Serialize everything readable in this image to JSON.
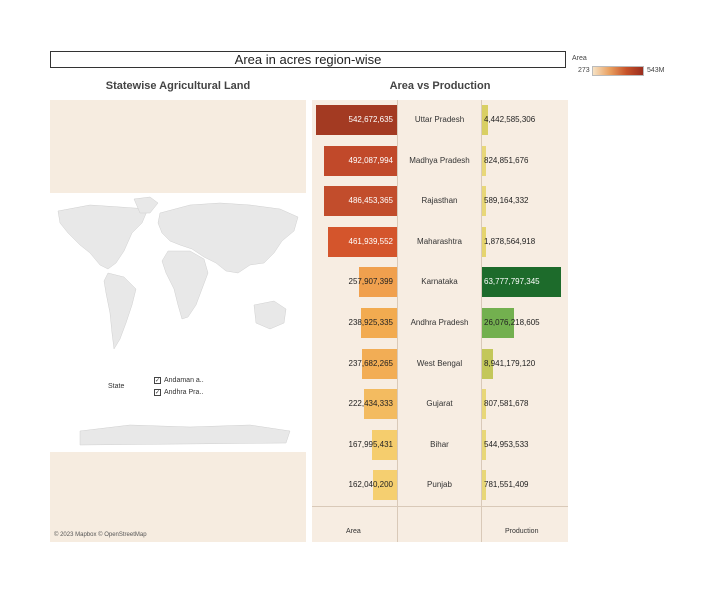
{
  "header": {
    "title": "Area in acres region-wise"
  },
  "legend": {
    "title": "Area",
    "min": "273",
    "max": "543M"
  },
  "map": {
    "title": "Statewise Agricultural Land",
    "filter_label": "State",
    "states": [
      {
        "label": "Andaman a.."
      },
      {
        "label": "Andhra Pra.."
      }
    ],
    "credit": "© 2023 Mapbox © OpenStreetMap",
    "colors": {
      "land": "#e8e8e8",
      "panel": "#f6ece0"
    }
  },
  "chart_data": {
    "type": "bar",
    "title": "Area vs Production",
    "categories": [
      "Uttar Pradesh",
      "Madhya Pradesh",
      "Rajasthan",
      "Maharashtra",
      "Karnataka",
      "Andhra Pradesh",
      "West Bengal",
      "Gujarat",
      "Bihar",
      "Punjab"
    ],
    "series": [
      {
        "name": "Area",
        "values": [
          542672635,
          492087994,
          486453365,
          461939552,
          257907399,
          238925335,
          237682265,
          222434333,
          167995431,
          162040200
        ],
        "labels": [
          "542,672,635",
          "492,087,994",
          "486,453,365",
          "461,939,552",
          "257,907,399",
          "238,925,335",
          "237,682,265",
          "222,434,333",
          "167,995,431",
          "162,040,200"
        ],
        "colors": [
          "#a33a22",
          "#c1492a",
          "#c24d2c",
          "#d4552c",
          "#f0a04e",
          "#f2ab50",
          "#f2ad55",
          "#f3bb60",
          "#f5cd6d",
          "#f5cf70"
        ]
      },
      {
        "name": "Production",
        "values": [
          4442585306,
          824851676,
          589164332,
          1878564918,
          63777797345,
          26076218605,
          8941179120,
          807581678,
          544953533,
          781551409
        ],
        "labels": [
          "4,442,585,306",
          "824,851,676",
          "589,164,332",
          "1,878,564,918",
          "63,777,797,345",
          "26,076,218,605",
          "8,941,179,120",
          "807,581,678",
          "544,953,533",
          "781,551,409"
        ],
        "colors": [
          "#d9cf63",
          "#e8d778",
          "#e8d778",
          "#e5d46e",
          "#1d6b2b",
          "#73b04f",
          "#c3c75a",
          "#e8d778",
          "#e8d778",
          "#e8d778"
        ]
      }
    ],
    "xlabels": [
      "Area",
      "Production"
    ]
  }
}
